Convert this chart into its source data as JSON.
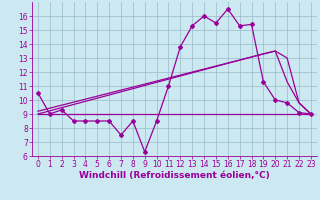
{
  "xlabel": "Windchill (Refroidissement éolien,°C)",
  "bg_color": "#cce8f0",
  "line_color": "#990099",
  "xlim": [
    -0.5,
    23.5
  ],
  "ylim": [
    6,
    17
  ],
  "yticks": [
    6,
    7,
    8,
    9,
    10,
    11,
    12,
    13,
    14,
    15,
    16
  ],
  "xticks": [
    0,
    1,
    2,
    3,
    4,
    5,
    6,
    7,
    8,
    9,
    10,
    11,
    12,
    13,
    14,
    15,
    16,
    17,
    18,
    19,
    20,
    21,
    22,
    23
  ],
  "series1_x": [
    0,
    1,
    2,
    3,
    4,
    5,
    6,
    7,
    8,
    9,
    10,
    11,
    12,
    13,
    14,
    15,
    16,
    17,
    18,
    19,
    20,
    21,
    22,
    23
  ],
  "series1_y": [
    10.5,
    9.0,
    9.3,
    8.5,
    8.5,
    8.5,
    8.5,
    7.5,
    8.5,
    6.3,
    8.5,
    11.0,
    13.8,
    15.3,
    16.0,
    15.5,
    16.5,
    15.3,
    15.4,
    11.3,
    10.0,
    9.8,
    9.1,
    9.0
  ],
  "series2_x": [
    0,
    23
  ],
  "series2_y": [
    9.0,
    9.0
  ],
  "series3_x": [
    0,
    23
  ],
  "series3_y": [
    9.0,
    9.0
  ],
  "series4_x": [
    0,
    20,
    21,
    22,
    23
  ],
  "series4_y": [
    9.2,
    13.5,
    11.3,
    9.8,
    9.0
  ],
  "series5_x": [
    0,
    19,
    20,
    21,
    22,
    23
  ],
  "series5_y": [
    9.0,
    13.3,
    13.5,
    13.0,
    9.8,
    9.0
  ],
  "grid_color": "#99bbcc",
  "xlabel_fontsize": 6.5,
  "tick_fontsize": 5.5,
  "marker_size": 2.0,
  "line_width": 0.9
}
